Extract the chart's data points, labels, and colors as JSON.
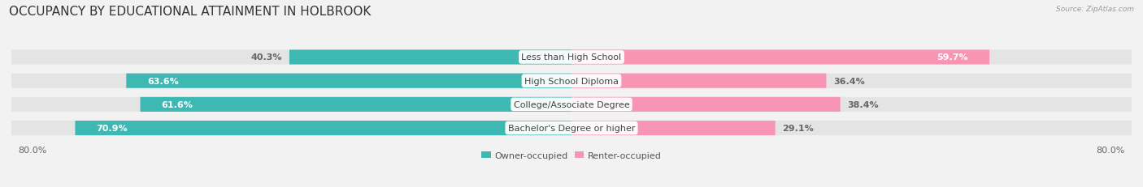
{
  "title": "OCCUPANCY BY EDUCATIONAL ATTAINMENT IN HOLBROOK",
  "source": "Source: ZipAtlas.com",
  "categories": [
    "Less than High School",
    "High School Diploma",
    "College/Associate Degree",
    "Bachelor's Degree or higher"
  ],
  "owner_values": [
    40.3,
    63.6,
    61.6,
    70.9
  ],
  "renter_values": [
    59.7,
    36.4,
    38.4,
    29.1
  ],
  "owner_color": "#3db8b3",
  "renter_color": "#f895b4",
  "background_color": "#f2f2f2",
  "bar_bg_color": "#e4e4e4",
  "xlim_left": -80.0,
  "xlim_right": 80.0,
  "x_axis_left_label": "80.0%",
  "x_axis_right_label": "80.0%",
  "title_fontsize": 11,
  "label_fontsize": 8,
  "value_fontsize": 8,
  "bar_height": 0.62,
  "legend_owner": "Owner-occupied",
  "legend_renter": "Renter-occupied"
}
